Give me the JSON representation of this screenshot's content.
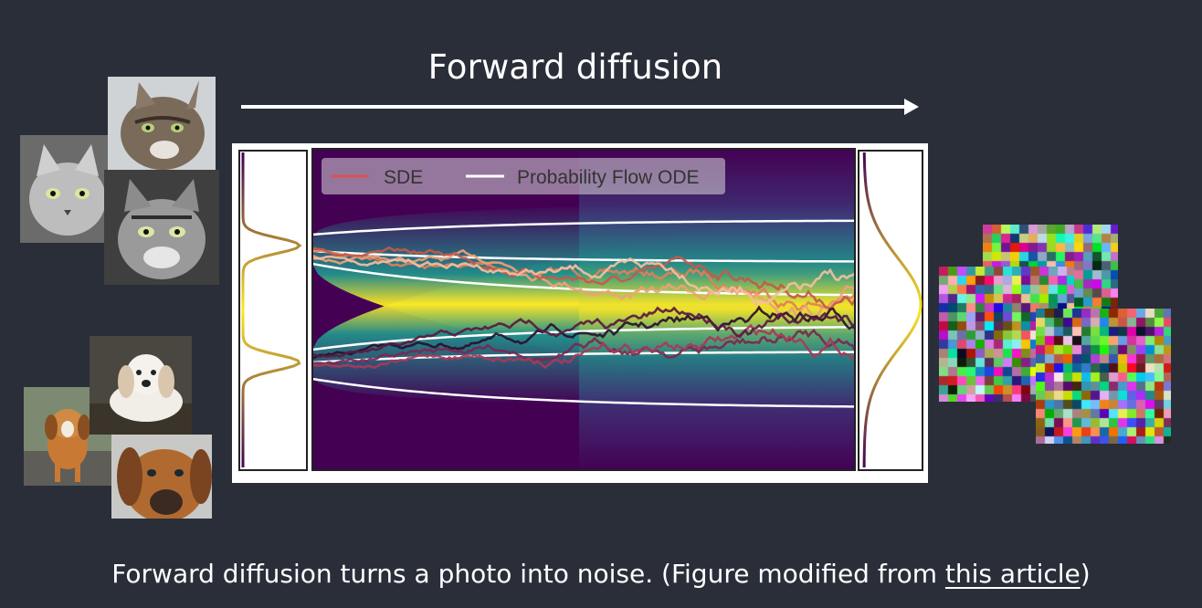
{
  "title": "Forward diffusion",
  "caption": {
    "prefix": "Forward diffusion turns a photo into noise. (Figure modified from ",
    "link_text": "this article",
    "suffix": ")"
  },
  "figure": {
    "legend": [
      {
        "label": "SDE",
        "color": "#d9534f"
      },
      {
        "label": "Probability Flow ODE",
        "color": "#ffffff"
      }
    ]
  },
  "colors": {
    "background": "#2a2e39",
    "viridis_dark": "#440154",
    "viridis_mid": "#21918c",
    "viridis_light": "#fde725"
  },
  "images": {
    "cats": [
      "cat-photo",
      "cat-photo",
      "cat-photo"
    ],
    "dogs": [
      "dog-photo",
      "dog-photo",
      "dog-photo"
    ],
    "noise": [
      "noise-image",
      "noise-image",
      "noise-image"
    ]
  }
}
